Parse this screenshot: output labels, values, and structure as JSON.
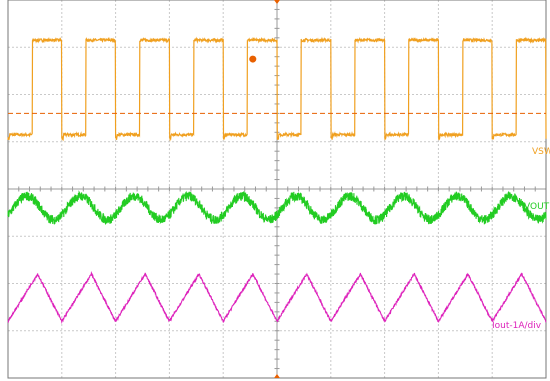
{
  "chart_data": {
    "type": "line",
    "divisions": {
      "x": 10,
      "y": 8
    },
    "grid": true,
    "series": [
      {
        "name": "VSW",
        "color": "#f0a020",
        "waveform": "square",
        "x_unit": "div",
        "y_unit": "div",
        "period": 1.0,
        "high_level": 7.15,
        "low_level": 5.15,
        "duty_cycle": 0.55,
        "phase": 0.45,
        "threshold_level": 5.6,
        "trigger_marker": {
          "x": 4.55,
          "y": 6.75
        }
      },
      {
        "name": "VOUT",
        "color": "#22cc22",
        "waveform": "ripple",
        "x_unit": "div",
        "y_unit": "div",
        "period": 1.0,
        "mean_level": 3.6,
        "peak_to_peak": 0.5,
        "noise": 0.1
      },
      {
        "name": "Iout-1A/div",
        "color": "#dd22bb",
        "waveform": "triangle",
        "x_unit": "div",
        "y_unit": "div",
        "period": 1.0,
        "peak_level": 2.2,
        "trough_level": 1.2,
        "rise_fraction": 0.55,
        "phase": 0.0
      }
    ]
  },
  "labels": {
    "vsw": "VSW",
    "vout": "VOUT",
    "iout": "Iout-1A/div"
  },
  "colors": {
    "grid": "#c9c9c9",
    "axis": "#999999",
    "border": "#777777",
    "marker": "#e86000"
  }
}
